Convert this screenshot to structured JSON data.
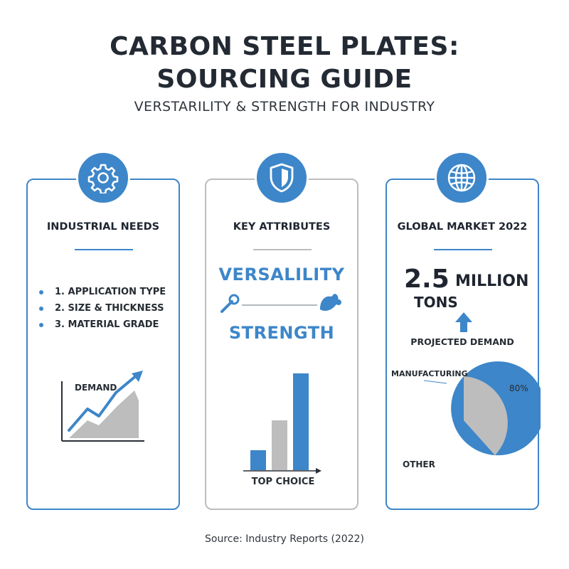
{
  "header": {
    "title_line1": "CARBON STEEL PLATES:",
    "title_line2": "SOURCING GUIDE",
    "subtitle": "VERSTARILITY & STRENGTH FOR INDUSTRY"
  },
  "cards": [
    {
      "title": "INDUSTRIAL NEEDS",
      "icon": "gear-icon",
      "items": [
        "1. APPLICATION TYPE",
        "2. SIZE & THICKNESS",
        "3. MATERIAL GRADE"
      ],
      "chart_label": "DEMAND"
    },
    {
      "title": "KEY ATTRIBUTES",
      "icon": "shield-icon",
      "attribute1": "VERSALILITY",
      "attribute2": "STRENGTH",
      "chart_label": "TOP CHOICE"
    },
    {
      "title": "GLOBAL MARKET 2022",
      "icon": "globe-icon",
      "value": "2.5",
      "unit_line1": "MILLION",
      "unit_line2": "TONS",
      "projected_label": "PROJECTED DEMAND",
      "pie": {
        "label_manufacturing": "MANUFACTURING",
        "label_pct": "80%",
        "label_other": "OTHER"
      }
    }
  ],
  "source": "Source: Industry Reports (2022)",
  "colors": {
    "accent": "#3d86c9",
    "grey": "#bdbdbd",
    "text": "#1f2530"
  }
}
